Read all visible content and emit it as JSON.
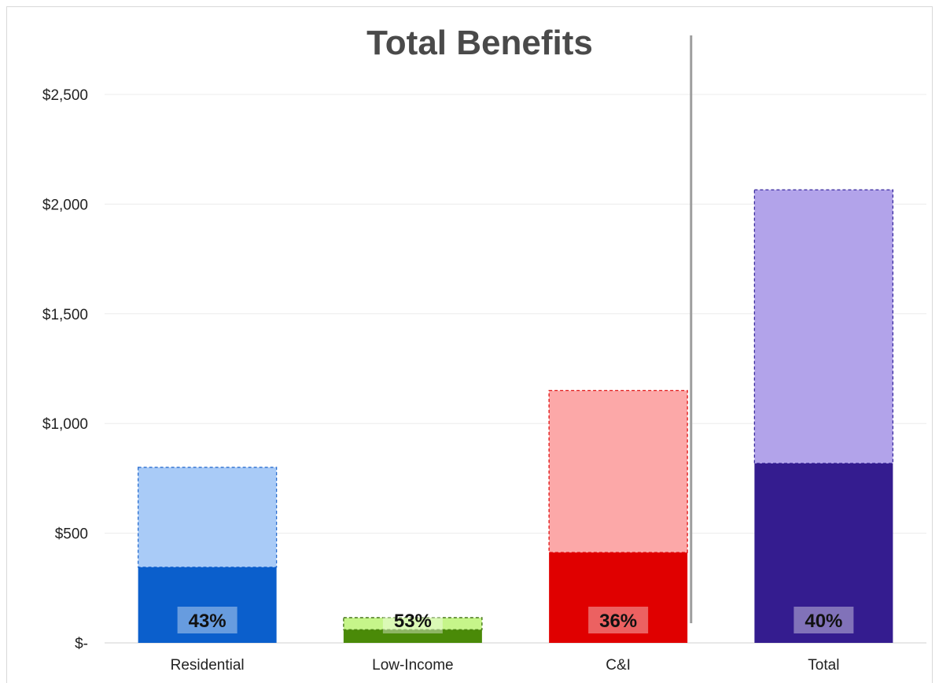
{
  "chart_data": {
    "type": "bar",
    "title": "Total Benefits",
    "xlabel": "",
    "ylabel": "",
    "ylim": [
      0,
      2500
    ],
    "yticks": [
      0,
      500,
      1000,
      1500,
      2000,
      2500
    ],
    "ytick_labels": [
      "$-",
      "$500",
      "$1,000",
      "$1,500",
      "$2,000",
      "$2,500"
    ],
    "categories": [
      "Residential",
      "Low-Income",
      "C&I",
      "Total"
    ],
    "stacked": true,
    "series": [
      {
        "values": [
          345,
          60,
          412,
          818
        ]
      },
      {
        "values": [
          455,
          55,
          738,
          1247
        ]
      }
    ],
    "totals": [
      800,
      115,
      1150,
      2065
    ],
    "data_labels": [
      "43%",
      "53%",
      "36%",
      "40%"
    ],
    "colors": {
      "solid": [
        "#0b5fcc",
        "#4a8a08",
        "#e00000",
        "#341c8f"
      ],
      "light": [
        "#a9cbf7",
        "#c6f58a",
        "#fca8a8",
        "#b2a3ea"
      ],
      "border": [
        "#2b6fd0",
        "#3c6e10",
        "#e01010",
        "#3a2a9e"
      ]
    },
    "grid": true,
    "legend": "none",
    "annotations": [
      "vertical separator line between C&I and Total"
    ]
  }
}
